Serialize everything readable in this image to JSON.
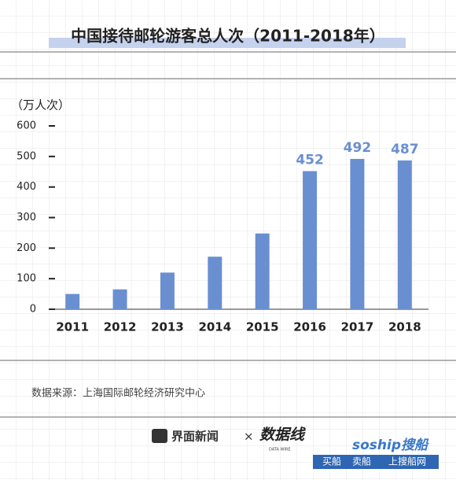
{
  "header": {
    "title": "中国接待邮轮游客总人次（2011-2018年）"
  },
  "chart_data": {
    "type": "bar",
    "unit_label": "（万人次）",
    "categories": [
      "2011",
      "2012",
      "2013",
      "2014",
      "2015",
      "2016",
      "2017",
      "2018"
    ],
    "values": [
      50,
      65,
      120,
      172,
      248,
      452,
      492,
      487
    ],
    "value_labels": [
      null,
      null,
      null,
      null,
      null,
      "452",
      "492",
      "487"
    ],
    "color": "#6a8fd1",
    "ylim": [
      0,
      600
    ],
    "yticks": [
      0,
      100,
      200,
      300,
      400,
      500,
      600
    ]
  },
  "footer": {
    "source": "数据来源：上海国际邮轮经济研究中心",
    "brand": "界面新闻",
    "separator": "×",
    "partner": "数据线",
    "partner_sub": "DATA WIRE",
    "watermark": "soship搜船",
    "watermark_links": [
      "买船",
      "卖船",
      "上搜船网"
    ]
  }
}
